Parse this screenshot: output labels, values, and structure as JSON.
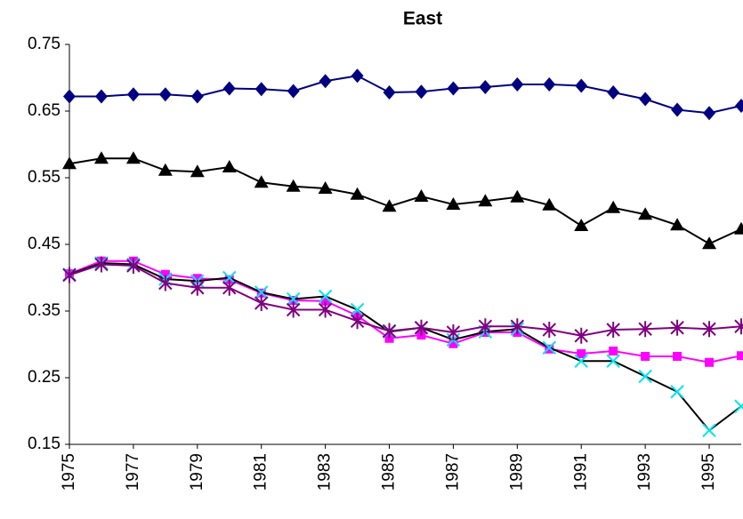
{
  "chart_data": {
    "type": "line",
    "title": "East",
    "x": [
      1975,
      1976,
      1977,
      1978,
      1979,
      1980,
      1981,
      1982,
      1983,
      1984,
      1985,
      1986,
      1987,
      1988,
      1989,
      1990,
      1991,
      1992,
      1993,
      1994,
      1995,
      1996
    ],
    "xlim": [
      1975,
      1996
    ],
    "xticks": [
      1975,
      1977,
      1979,
      1981,
      1983,
      1985,
      1987,
      1989,
      1991,
      1993,
      1995
    ],
    "ylim": [
      0.15,
      0.75
    ],
    "yticks": [
      0.15,
      0.25,
      0.35,
      0.45,
      0.55,
      0.65,
      0.75
    ],
    "grid": false,
    "series": [
      {
        "color": "#000080",
        "line_color": "#000080",
        "marker": "diamond",
        "values": [
          0.672,
          0.672,
          0.675,
          0.675,
          0.672,
          0.684,
          0.683,
          0.68,
          0.695,
          0.703,
          0.678,
          0.679,
          0.684,
          0.686,
          0.69,
          0.69,
          0.688,
          0.678,
          0.668,
          0.652,
          0.647,
          0.658
        ]
      },
      {
        "color": "#000000",
        "line_color": "#000000",
        "marker": "triangle",
        "values": [
          0.571,
          0.579,
          0.579,
          0.561,
          0.559,
          0.566,
          0.543,
          0.537,
          0.534,
          0.525,
          0.507,
          0.522,
          0.51,
          0.515,
          0.521,
          0.509,
          0.478,
          0.505,
          0.495,
          0.479,
          0.451,
          0.473
        ]
      },
      {
        "color": "#ff00ff",
        "line_color": "#ff00ff",
        "marker": "square",
        "values": [
          0.406,
          0.425,
          0.425,
          0.405,
          0.399,
          0.397,
          0.377,
          0.366,
          0.365,
          0.343,
          0.309,
          0.314,
          0.301,
          0.318,
          0.318,
          0.293,
          0.286,
          0.29,
          0.282,
          0.282,
          0.273,
          0.283
        ]
      },
      {
        "color": "#00e5ee",
        "line_color": "#000000",
        "marker": "x",
        "values": [
          0.405,
          0.422,
          0.42,
          0.398,
          0.395,
          0.4,
          0.378,
          0.368,
          0.372,
          0.352,
          0.319,
          0.325,
          0.307,
          0.319,
          0.323,
          0.295,
          0.275,
          0.275,
          0.252,
          0.229,
          0.171,
          0.207
        ]
      },
      {
        "color": "#800080",
        "line_color": "#800080",
        "marker": "asterisk",
        "values": [
          0.404,
          0.42,
          0.418,
          0.392,
          0.385,
          0.385,
          0.362,
          0.352,
          0.352,
          0.335,
          0.32,
          0.325,
          0.318,
          0.327,
          0.327,
          0.322,
          0.313,
          0.322,
          0.323,
          0.325,
          0.323,
          0.327
        ]
      }
    ]
  }
}
